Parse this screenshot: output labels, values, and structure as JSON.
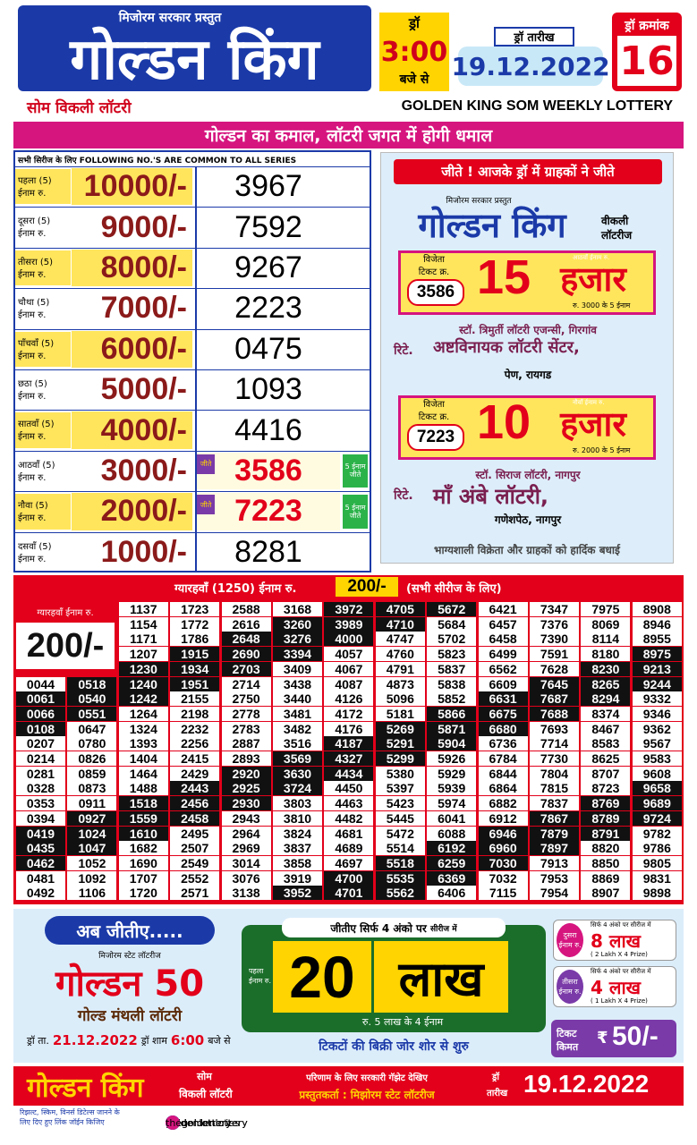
{
  "header": {
    "presenter": "मिजोरम सरकार प्रस्तुत",
    "brand": "गोल्डन किंग",
    "draw_label": "ड्रॉ",
    "draw_time": "3:00",
    "draw_time_suffix": "बजे से",
    "date_label": "ड्रॉ तारीख",
    "date": "19.12.2022",
    "number_label": "ड्रॉ क्रमांक",
    "number": "16",
    "lottery_hi": "सोम विकली लॉटरी",
    "lottery_en": "GOLDEN KING SOM WEEKLY LOTTERY",
    "slogan": "गोल्डन का कमाल, लॉटरी जगत में होगी धमाल"
  },
  "results": {
    "common_note": "सभी सिरीज के लिए  FOLLOWING NO.'S ARE COMMON TO ALL SERIES",
    "rows": [
      {
        "label_1": "पहला (5)",
        "label_2": "ईनाम रु.",
        "amount": "10000/-",
        "number": "3967"
      },
      {
        "label_1": "दूसरा (5)",
        "label_2": "ईनाम रु.",
        "amount": "9000/-",
        "number": "7592"
      },
      {
        "label_1": "तीसरा (5)",
        "label_2": "ईनाम रु.",
        "amount": "8000/-",
        "number": "9267"
      },
      {
        "label_1": "चौथा (5)",
        "label_2": "ईनाम रु.",
        "amount": "7000/-",
        "number": "2223"
      },
      {
        "label_1": "पाँचवाँ (5)",
        "label_2": "ईनाम रु.",
        "amount": "6000/-",
        "number": "0475"
      },
      {
        "label_1": "छठा (5)",
        "label_2": "ईनाम रु.",
        "amount": "5000/-",
        "number": "1093"
      },
      {
        "label_1": "सातवाँ (5)",
        "label_2": "ईनाम रु.",
        "amount": "4000/-",
        "number": "4416"
      },
      {
        "label_1": "आठवाँ (5)",
        "label_2": "ईनाम रु.",
        "amount": "3000/-",
        "number": "3586",
        "tag": "जीते",
        "note": "5 ईनाम जीते"
      },
      {
        "label_1": "नौवा (5)",
        "label_2": "ईनाम रु.",
        "amount": "2000/-",
        "number": "7223",
        "tag": "जीते",
        "note": "5 ईनाम जीते"
      },
      {
        "label_1": "दसवाँ (5)",
        "label_2": "ईनाम रु.",
        "amount": "1000/-",
        "number": "8281"
      }
    ]
  },
  "winners": {
    "title": "जीते ! आजके ड्रॉ में ग्राहकों ने जीते",
    "presenter": "मिजोरम सरकार प्रस्तुत",
    "brand": "गोल्डन किंग",
    "brand_sub_1": "वीकली",
    "brand_sub_2": "लॉटरीज",
    "cards": [
      {
        "ticket_label_1": "विजेता",
        "ticket_label_2": "टिकट क्र.",
        "ticket": "3586",
        "prize_label": "आठवाँ ईनाम रु.",
        "amount": "15",
        "unit": "हजार",
        "note": "रु. 3000 के 5 ईनाम",
        "agent": "स्टॉ. त्रिमुर्ती लॉटरी एजन्सी, गिरगांव",
        "retailer_prefix": "रिटे.",
        "retailer": "अष्टविनायक लॉटरी सेंटर,",
        "place": "पेण, रायगड"
      },
      {
        "ticket_label_1": "विजेता",
        "ticket_label_2": "टिकट क्र.",
        "ticket": "7223",
        "prize_label": "नौवाँ ईनाम रु.",
        "amount": "10",
        "unit": "हजार",
        "note": "रु. 2000 के 5 ईनाम",
        "agent": "स्टॉ. सिराज लॉटरी, नागपुर",
        "retailer_prefix": "रिटे.",
        "retailer": "माँ अंबे लॉटरी,",
        "place": "गणेशपेठ, नागपुर"
      }
    ],
    "footer": "भाग्यशाली विक्रेता और ग्राहकों को हार्दिक बधाई"
  },
  "eleventh": {
    "heading_pre": "ग्यारहवाँ (1250) ईनाम रु.",
    "heading_amount": "200/-",
    "heading_post": "(सभी सीरीज के लिए)",
    "side_label": "ग्यारहवाँ ईनाम रु.",
    "side_amount": "200/-",
    "columns": [
      [
        "0044",
        "0061",
        "0066",
        "0108",
        "0207",
        "0214",
        "0281",
        "0328",
        "0353",
        "0394",
        "0419",
        "0435",
        "0462",
        "0481",
        "0492"
      ],
      [
        "0518",
        "0540",
        "0551",
        "0647",
        "0780",
        "0826",
        "0859",
        "0873",
        "0911",
        "0927",
        "1024",
        "1047",
        "1052",
        "1092",
        "1106"
      ],
      [
        "1137",
        "1154",
        "1171",
        "1207",
        "1230",
        "1240",
        "1242",
        "1264",
        "1324",
        "1393",
        "1404",
        "1464",
        "1488",
        "1518",
        "1559",
        "1610",
        "1682",
        "1690",
        "1707",
        "1720"
      ],
      [
        "1723",
        "1772",
        "1786",
        "1915",
        "1934",
        "1951",
        "2155",
        "2198",
        "2232",
        "2256",
        "2415",
        "2429",
        "2443",
        "2456",
        "2458",
        "2495",
        "2507",
        "2549",
        "2552",
        "2571"
      ],
      [
        "2588",
        "2616",
        "2648",
        "2690",
        "2703",
        "2714",
        "2750",
        "2778",
        "2783",
        "2887",
        "2893",
        "2920",
        "2925",
        "2930",
        "2943",
        "2964",
        "2969",
        "3014",
        "3076",
        "3138"
      ],
      [
        "3168",
        "3260",
        "3276",
        "3394",
        "3409",
        "3438",
        "3440",
        "3481",
        "3482",
        "3516",
        "3569",
        "3630",
        "3724",
        "3803",
        "3810",
        "3824",
        "3837",
        "3858",
        "3919",
        "3952"
      ],
      [
        "3972",
        "3989",
        "4000",
        "4057",
        "4067",
        "4087",
        "4126",
        "4172",
        "4176",
        "4187",
        "4327",
        "4434",
        "4450",
        "4463",
        "4482",
        "4681",
        "4689",
        "4697",
        "4700",
        "4701"
      ],
      [
        "4705",
        "4710",
        "4747",
        "4760",
        "4791",
        "4873",
        "5096",
        "5181",
        "5269",
        "5291",
        "5299",
        "5380",
        "5397",
        "5423",
        "5445",
        "5472",
        "5514",
        "5518",
        "5535",
        "5562"
      ],
      [
        "5672",
        "5684",
        "5702",
        "5823",
        "5837",
        "5838",
        "5852",
        "5866",
        "5871",
        "5904",
        "5926",
        "5929",
        "5939",
        "5974",
        "6041",
        "6088",
        "6192",
        "6259",
        "6369",
        "6406"
      ],
      [
        "6421",
        "6457",
        "6458",
        "6499",
        "6562",
        "6609",
        "6631",
        "6675",
        "6680",
        "6736",
        "6784",
        "6844",
        "6864",
        "6882",
        "6912",
        "6946",
        "6960",
        "7030",
        "7032",
        "7115"
      ],
      [
        "7347",
        "7376",
        "7390",
        "7591",
        "7628",
        "7645",
        "7687",
        "7688",
        "7693",
        "7714",
        "7730",
        "7804",
        "7815",
        "7837",
        "7867",
        "7879",
        "7897",
        "7913",
        "7953",
        "7954"
      ],
      [
        "7975",
        "8069",
        "8114",
        "8180",
        "8230",
        "8265",
        "8294",
        "8374",
        "8467",
        "8583",
        "8625",
        "8707",
        "8723",
        "8769",
        "8789",
        "8791",
        "8820",
        "8850",
        "8869",
        "8907"
      ],
      [
        "8908",
        "8946",
        "8955",
        "8975",
        "9213",
        "9244",
        "9332",
        "9346",
        "9362",
        "9567",
        "9583",
        "9608",
        "9658",
        "9689",
        "9724",
        "9782",
        "9786",
        "9805",
        "9831",
        "9898"
      ]
    ]
  },
  "promo": {
    "left": {
      "headline": "अब जीतीए.....",
      "presenter": "मिजोरम स्टेट लॉटरीज",
      "brand": "गोल्डन 50",
      "sub": "गोल्ड मंथली लॉटरी",
      "date_label": "ड्रॉ ता.",
      "date": "21.12.2022",
      "time_label": "ड्रॉ शाम",
      "time": "6:00",
      "time_suffix": "बजे से"
    },
    "center": {
      "tag": "जीतीए सिर्फ 4 अंको पर",
      "tag_suffix": "सीरीज में",
      "prize_label": "पहला ईनाम रु.",
      "amount": "20",
      "unit": "लाख",
      "note": "रु. 5 लाख के 4 ईनाम",
      "sale": "टिकटों की बिक्री जोर शोर से शुरु"
    },
    "right": [
      {
        "label": "दुसरा ईनाम रु.",
        "tag": "सिर्फ 4 अंको पर सीरीज में",
        "amount": "8 लाख",
        "detail": "( 2 Lakh X 4 Prize)"
      },
      {
        "label": "तीसरा ईनाम रु.",
        "tag": "सिर्फ 4 अंको पर सीरीज में",
        "amount": "4 लाख",
        "detail": "( 1 Lakh X 4 Prize)"
      }
    ],
    "price_label": "टिकट किमत",
    "price_symbol": "₹",
    "price": "50/-"
  },
  "footer": {
    "brand": "गोल्डन किंग",
    "sub_1": "सोम",
    "sub_2": "विकली लॉटरी",
    "gazette": "परिणाम के लिए सरकारी गॅझेट देखिए",
    "presenter": "प्रस्तुतकर्ता : मिझोरम स्टेट लॉटरीज",
    "date_label_1": "ड्रॉ",
    "date_label_2": "तारीख",
    "date": "19.12.2022",
    "join_1": "रिझल्ट, स्किम, विनर्स डिटेल्स जानने के",
    "join_2": "लिए दिए हुए लिंक जॉईन किजिए",
    "social": [
      "goldenlottery",
      "goldenlottery",
      "goldenlotteries",
      "thegoldenlottery",
      "thegoldenlottery"
    ]
  }
}
